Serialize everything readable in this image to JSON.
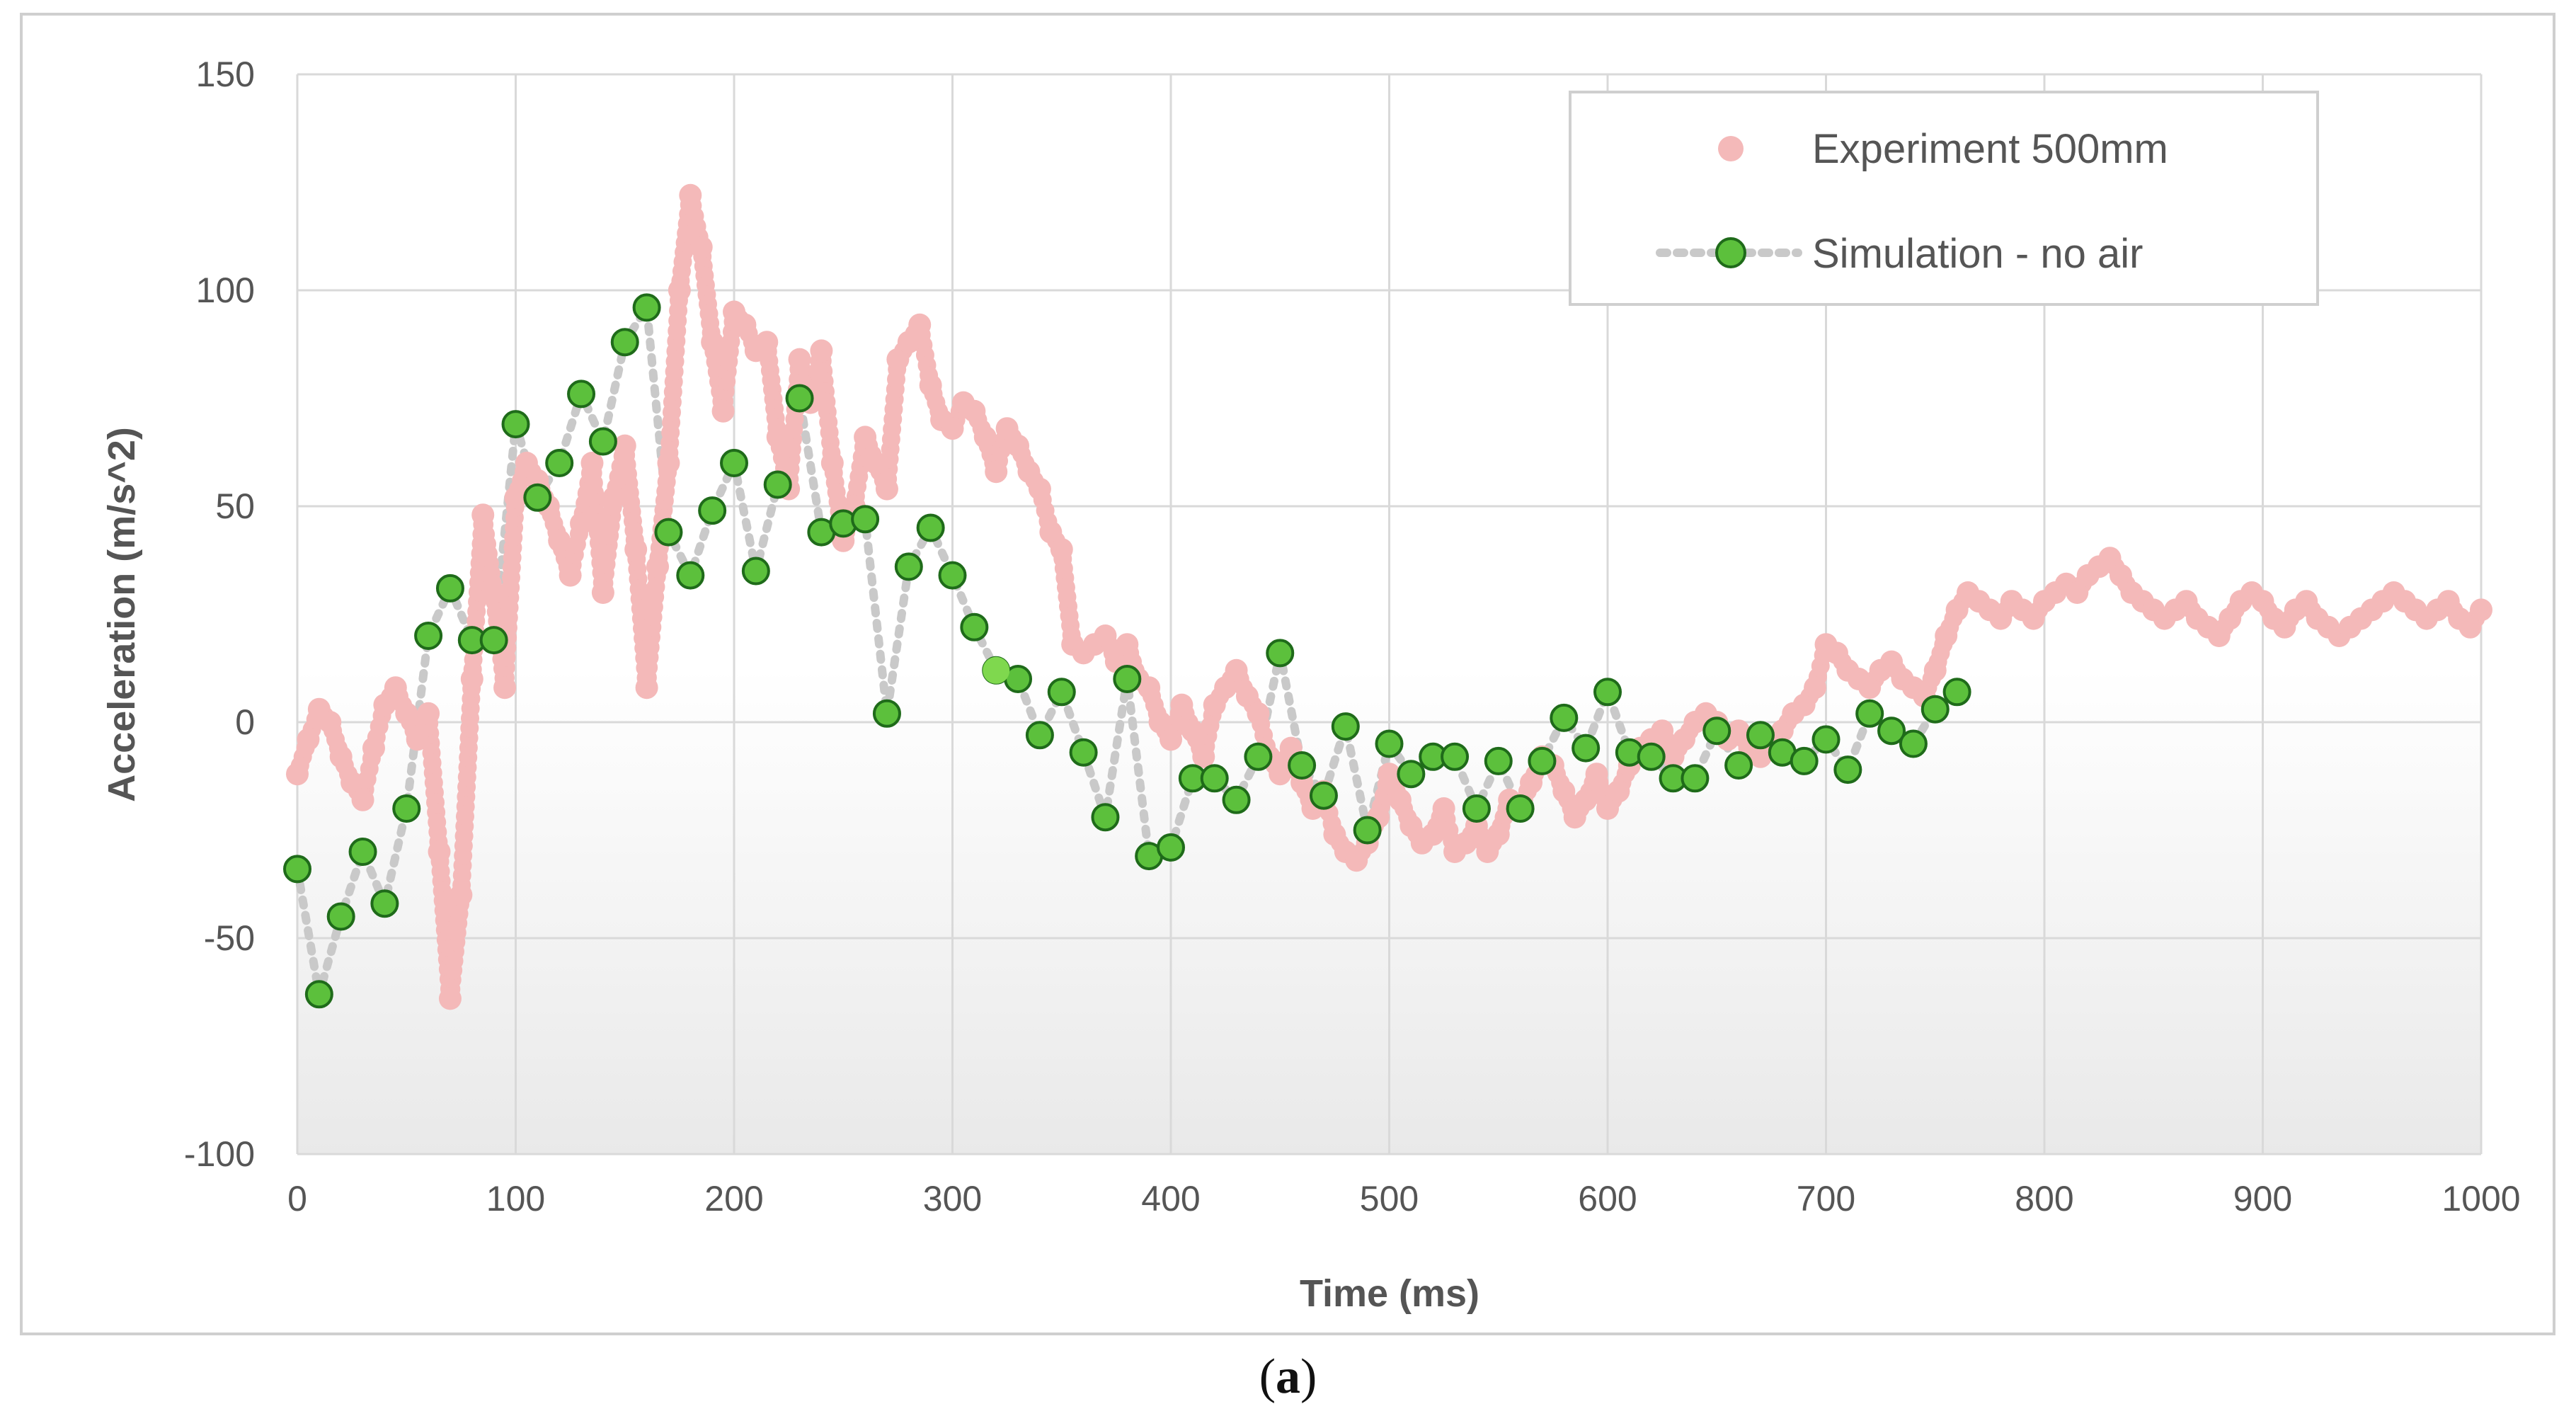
{
  "caption": {
    "open": "(",
    "letter": "a",
    "close": ")"
  },
  "chart_data": {
    "type": "scatter",
    "title": "",
    "xlabel": "Time  (ms)",
    "ylabel": "Acceleration  (m/s^2)",
    "xlim": [
      0,
      1000
    ],
    "ylim": [
      -100,
      150
    ],
    "xticks": [
      0,
      100,
      200,
      300,
      400,
      500,
      600,
      700,
      800,
      900,
      1000
    ],
    "yticks": [
      -100,
      -50,
      0,
      50,
      100,
      150
    ],
    "grid": true,
    "legend_position": "top-right",
    "colors": {
      "experiment_fill": "#f4b9b9",
      "experiment_shadow": "#111111",
      "simulation_fill": "#5cc03c",
      "simulation_stroke": "#1f6b1a",
      "simulation_line": "#c9c9c9",
      "grid": "#d9d9d9",
      "frame": "#cfcfcf",
      "highlight": "#7fd84e"
    },
    "series": [
      {
        "name": "Experiment 500mm",
        "marker": "circle",
        "x": [
          0,
          5,
          10,
          15,
          20,
          25,
          30,
          35,
          40,
          45,
          50,
          55,
          60,
          65,
          70,
          75,
          80,
          85,
          90,
          95,
          100,
          105,
          110,
          115,
          120,
          125,
          130,
          135,
          140,
          145,
          150,
          155,
          160,
          165,
          170,
          175,
          180,
          185,
          190,
          195,
          200,
          205,
          210,
          215,
          220,
          225,
          230,
          235,
          240,
          245,
          250,
          255,
          260,
          265,
          270,
          275,
          280,
          285,
          290,
          295,
          300,
          305,
          310,
          315,
          320,
          325,
          330,
          335,
          340,
          345,
          350,
          355,
          360,
          365,
          370,
          375,
          380,
          385,
          390,
          395,
          400,
          405,
          410,
          415,
          420,
          425,
          430,
          435,
          440,
          445,
          450,
          455,
          460,
          465,
          470,
          475,
          480,
          485,
          490,
          495,
          500,
          505,
          510,
          515,
          520,
          525,
          530,
          535,
          540,
          545,
          550,
          555,
          560,
          565,
          570,
          575,
          580,
          585,
          590,
          595,
          600,
          605,
          610,
          615,
          620,
          625,
          630,
          635,
          640,
          645,
          650,
          655,
          660,
          665,
          670,
          675,
          680,
          685,
          690,
          695,
          700,
          705,
          710,
          715,
          720,
          725,
          730,
          735,
          740,
          745,
          750,
          755,
          760,
          765,
          770,
          775,
          780,
          785,
          790,
          795,
          800,
          805,
          810,
          815,
          820,
          825,
          830,
          835,
          840,
          845,
          850,
          855,
          860,
          865,
          870,
          875,
          880,
          885,
          890,
          895,
          900,
          905,
          910,
          915,
          920,
          925,
          930,
          935,
          940,
          945,
          950,
          955,
          960,
          965,
          970,
          975,
          980,
          985,
          990,
          995,
          1000
        ],
        "y": [
          -12,
          -4,
          3,
          0,
          -8,
          -14,
          -18,
          -6,
          4,
          8,
          2,
          -4,
          2,
          -30,
          -64,
          -40,
          10,
          48,
          30,
          8,
          52,
          60,
          56,
          50,
          42,
          34,
          46,
          60,
          30,
          52,
          64,
          40,
          8,
          36,
          60,
          100,
          122,
          110,
          88,
          72,
          95,
          92,
          86,
          88,
          66,
          54,
          84,
          74,
          86,
          60,
          42,
          50,
          66,
          60,
          54,
          84,
          88,
          92,
          78,
          70,
          68,
          74,
          72,
          66,
          58,
          68,
          64,
          58,
          54,
          44,
          40,
          18,
          16,
          18,
          20,
          14,
          18,
          10,
          8,
          0,
          -4,
          4,
          -2,
          -8,
          4,
          8,
          12,
          6,
          2,
          -8,
          -12,
          -6,
          -14,
          -20,
          -16,
          -26,
          -30,
          -32,
          -28,
          -22,
          -12,
          -18,
          -24,
          -28,
          -26,
          -20,
          -30,
          -28,
          -24,
          -30,
          -26,
          -18,
          -20,
          -14,
          -8,
          -10,
          -16,
          -22,
          -18,
          -12,
          -20,
          -16,
          -10,
          -6,
          -4,
          -2,
          -8,
          -4,
          0,
          2,
          0,
          -4,
          -2,
          -6,
          -8,
          -4,
          -2,
          2,
          4,
          8,
          18,
          16,
          12,
          10,
          8,
          12,
          14,
          10,
          8,
          6,
          12,
          20,
          26,
          30,
          28,
          26,
          24,
          28,
          26,
          24,
          28,
          30,
          32,
          30,
          34,
          36,
          38,
          34,
          30,
          28,
          26,
          24,
          26,
          28,
          24,
          22,
          20,
          24,
          28,
          30,
          28,
          24,
          22,
          26,
          28,
          24,
          22,
          20,
          22,
          24,
          26,
          28,
          30,
          28,
          26,
          24,
          26,
          28,
          24,
          22,
          26
        ]
      },
      {
        "name": "Simulation - no air",
        "marker": "circle",
        "line": "dotted",
        "x": [
          0,
          10,
          20,
          30,
          40,
          50,
          60,
          70,
          80,
          90,
          100,
          110,
          120,
          130,
          140,
          150,
          160,
          170,
          180,
          190,
          200,
          210,
          220,
          230,
          240,
          250,
          260,
          270,
          280,
          290,
          300,
          310,
          320,
          330,
          340,
          350,
          360,
          370,
          380,
          390,
          400,
          410,
          420,
          430,
          440,
          450,
          460,
          470,
          480,
          490,
          500,
          510,
          520,
          530,
          540,
          550,
          560,
          570,
          580,
          590,
          600,
          610,
          620,
          630,
          640,
          650,
          660,
          670,
          680,
          690,
          700,
          710,
          720,
          730,
          740,
          750,
          760
        ],
        "y": [
          -34,
          -63,
          -45,
          -30,
          -42,
          -20,
          20,
          31,
          19,
          19,
          69,
          52,
          60,
          76,
          65,
          88,
          96,
          44,
          34,
          49,
          60,
          35,
          55,
          75,
          44,
          46,
          47,
          2,
          36,
          45,
          34,
          22,
          12,
          10,
          -3,
          7,
          -7,
          -22,
          10,
          -31,
          -29,
          -13,
          -13,
          -18,
          -8,
          16,
          -10,
          -17,
          -1,
          -25,
          -5,
          -12,
          -8,
          -8,
          -20,
          -9,
          -20,
          -9,
          1,
          -6,
          7,
          -7,
          -8,
          -13,
          -13,
          -2,
          -10,
          -3,
          -7,
          -9,
          -4,
          -11,
          2,
          -2,
          -5,
          3,
          7
        ]
      }
    ],
    "highlight_point": {
      "series": "Simulation - no air",
      "x": 320,
      "y": 12
    }
  }
}
